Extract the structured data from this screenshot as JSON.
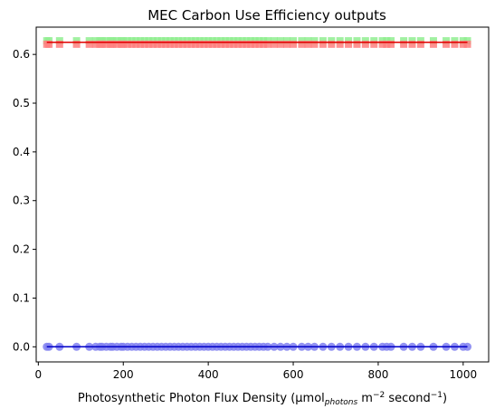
{
  "chart_data": {
    "type": "scatter",
    "title": "MEC Carbon Use Efficiency outputs",
    "xlabel": {
      "base": "Photosynthetic Photon Flux Density (µmol",
      "sub": "photons",
      "mid": " m",
      "sup1": "−2",
      "mid2": " second",
      "sup2": "−1",
      "end": ")"
    },
    "ylabel": "",
    "xlim": [
      -5,
      1060
    ],
    "ylim": [
      -0.031,
      0.656
    ],
    "x_ticks": [
      0,
      200,
      400,
      600,
      800,
      1000
    ],
    "x_tick_labels": [
      "0",
      "200",
      "400",
      "600",
      "800",
      "1000"
    ],
    "y_ticks": [
      0.0,
      0.1,
      0.2,
      0.3,
      0.4,
      0.5,
      0.6
    ],
    "y_tick_labels": [
      "0.0",
      "0.1",
      "0.2",
      "0.3",
      "0.4",
      "0.5",
      "0.6"
    ],
    "grid": false,
    "x": [
      20,
      25,
      50,
      90,
      120,
      135,
      145,
      150,
      160,
      170,
      175,
      185,
      195,
      200,
      210,
      220,
      230,
      240,
      250,
      260,
      270,
      280,
      290,
      300,
      310,
      320,
      330,
      340,
      350,
      360,
      370,
      380,
      390,
      400,
      410,
      420,
      430,
      440,
      450,
      460,
      470,
      480,
      490,
      500,
      510,
      520,
      530,
      540,
      555,
      570,
      585,
      600,
      620,
      635,
      650,
      670,
      690,
      710,
      730,
      750,
      770,
      790,
      810,
      820,
      830,
      860,
      880,
      900,
      930,
      960,
      980,
      1000,
      1010
    ],
    "series": [
      {
        "kind": "markers-square",
        "color": "#90ee90",
        "y_constant": 0.628
      },
      {
        "kind": "markers-square",
        "color": "#ff7f7f",
        "y_constant": 0.621
      },
      {
        "kind": "line",
        "color": "#e00000",
        "y_constant": 0.625
      },
      {
        "kind": "markers-circle",
        "color": "#8080f0",
        "y_constant": 0.0
      },
      {
        "kind": "line",
        "color": "#0000c8",
        "y_constant": 0.0
      }
    ]
  }
}
